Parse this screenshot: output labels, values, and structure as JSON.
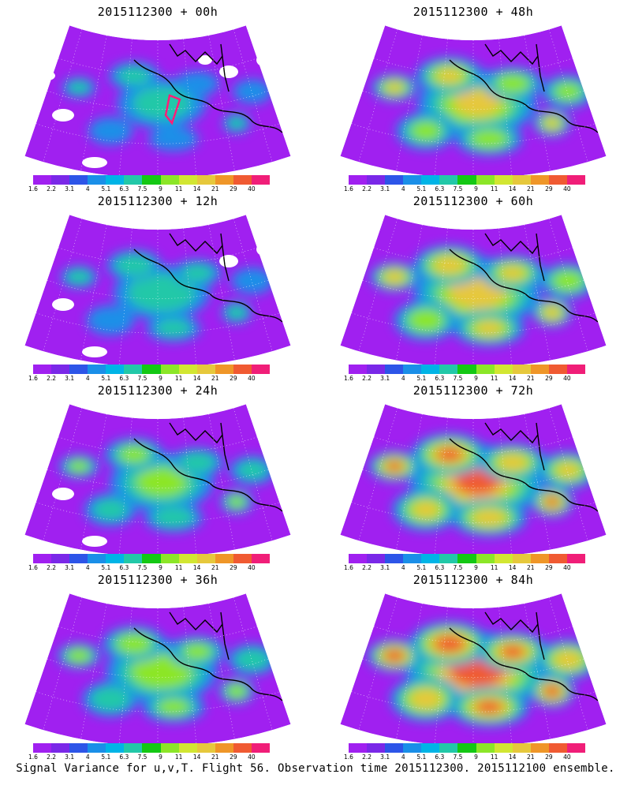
{
  "panels": [
    {
      "title": "2015112300 + 00h",
      "stage": 0
    },
    {
      "title": "2015112300 + 48h",
      "stage": 4
    },
    {
      "title": "2015112300 + 12h",
      "stage": 1
    },
    {
      "title": "2015112300 + 60h",
      "stage": 5
    },
    {
      "title": "2015112300 + 24h",
      "stage": 2
    },
    {
      "title": "2015112300 + 72h",
      "stage": 6
    },
    {
      "title": "2015112300 + 36h",
      "stage": 3
    },
    {
      "title": "2015112300 + 84h",
      "stage": 7
    }
  ],
  "colorbar": {
    "labels": [
      "1.6",
      "2.2",
      "3.1",
      "4",
      "5.1",
      "6.3",
      "7.5",
      "9",
      "11",
      "14",
      "21",
      "29",
      "40"
    ],
    "colors": [
      "#a020f0",
      "#7a28e8",
      "#2d55e8",
      "#1a8fe8",
      "#00b4e6",
      "#22c8a8",
      "#14c814",
      "#8ce628",
      "#d2e632",
      "#e6c83c",
      "#ef9628",
      "#f05a32",
      "#f01e78"
    ]
  },
  "footer": "Signal Variance for u,v,T. Flight 56. Observation time 2015112300. 2015112100 ensemble."
}
